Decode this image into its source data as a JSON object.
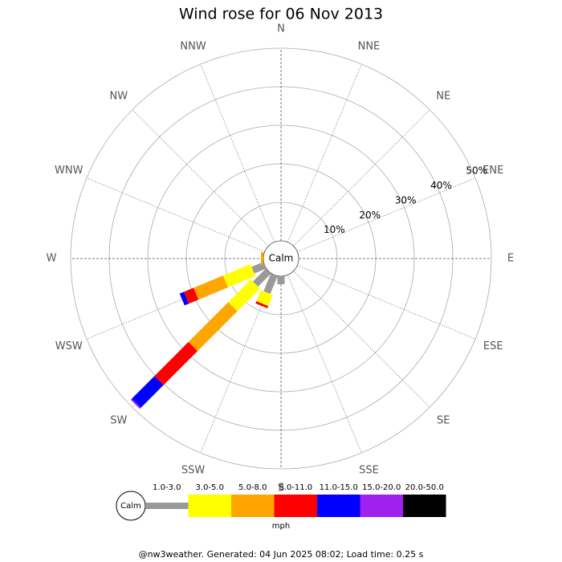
{
  "chart_data": {
    "type": "windrose",
    "title": "Wind rose for 06 Nov 2013",
    "calm_label": "Calm",
    "unit": "mph",
    "footer": "@nw3weather. Generated: 04 Jun 2025 08:02; Load time: 0.25 s",
    "categories": [
      "N",
      "NNE",
      "NE",
      "ENE",
      "E",
      "ESE",
      "SE",
      "SSE",
      "S",
      "SSW",
      "SW",
      "WSW",
      "W",
      "WNW",
      "NW",
      "NNW"
    ],
    "rlim": [
      0,
      50
    ],
    "rticks": [
      {
        "value": 10,
        "label": "10%"
      },
      {
        "value": 20,
        "label": "20%"
      },
      {
        "value": 30,
        "label": "30%"
      },
      {
        "value": 40,
        "label": "40%"
      },
      {
        "value": 50,
        "label": "50%"
      }
    ],
    "series": [
      {
        "name": "1.0-3.0",
        "color": "#999999",
        "values": [
          0,
          0,
          0,
          0,
          0,
          0,
          0,
          0,
          2.1,
          5,
          4.8,
          3.3,
          0,
          0,
          0,
          0
        ]
      },
      {
        "name": "3.0-5.0",
        "color": "#ffff00",
        "values": [
          0,
          0,
          0,
          0,
          0,
          0,
          0,
          0,
          0,
          3.1,
          8.3,
          7.7,
          0,
          0,
          0,
          0
        ]
      },
      {
        "name": "5.0-8.0",
        "color": "#ffa500",
        "values": [
          0,
          0,
          0,
          0,
          0,
          0,
          0,
          0,
          0,
          0,
          14.6,
          8.3,
          0.6,
          0,
          0,
          0
        ]
      },
      {
        "name": "8.0-11.0",
        "color": "#ff0000",
        "values": [
          0,
          0,
          0,
          0,
          0,
          0,
          0,
          0,
          0,
          0.6,
          12.5,
          2.7,
          0,
          0,
          0,
          0
        ]
      },
      {
        "name": "11.0-15.0",
        "color": "#0000ff",
        "values": [
          0,
          0,
          0,
          0,
          0,
          0,
          0,
          0,
          0,
          0,
          8.3,
          1.2,
          0,
          0,
          0,
          0
        ]
      },
      {
        "name": "15.0-20.0",
        "color": "#a020f0",
        "values": [
          0,
          0,
          0,
          0,
          0,
          0,
          0,
          0,
          0,
          0,
          0.4,
          0,
          0,
          0,
          0,
          0
        ]
      },
      {
        "name": "20.0-50.0",
        "color": "#000000",
        "values": [
          0,
          0,
          0,
          0,
          0,
          0,
          0,
          0,
          0,
          0,
          0,
          0,
          0,
          0,
          0,
          0
        ]
      }
    ]
  }
}
